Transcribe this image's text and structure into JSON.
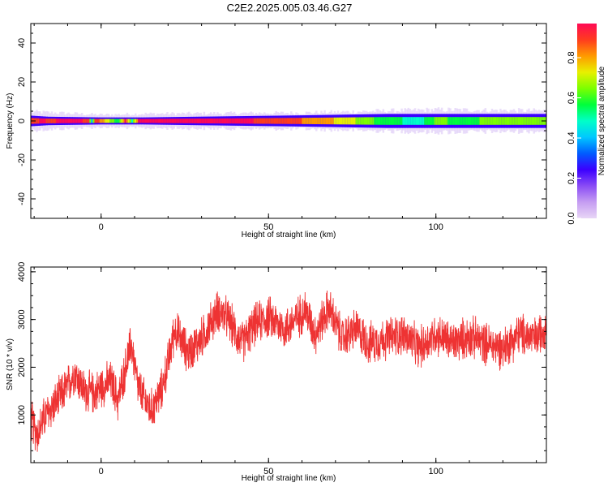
{
  "title": "C2E2.2025.005.03.46.G27",
  "chart_data": [
    {
      "type": "heatmap",
      "xlabel": "Height of straight line (km)",
      "ylabel": "Frequency (Hz)",
      "xlim": [
        -21,
        133
      ],
      "ylim": [
        -50,
        50
      ],
      "xticks": [
        0,
        50,
        100
      ],
      "yticks": [
        -40,
        -20,
        0,
        20,
        40
      ],
      "band_center_hz": 0,
      "band_core_halfwidth_hz": [
        {
          "x": -21,
          "w": 1.5
        },
        {
          "x": -16,
          "w": 1.2
        },
        {
          "x": 0,
          "w": 1.0
        },
        {
          "x": 12,
          "w": 1.0
        },
        {
          "x": 60,
          "w": 1.6
        },
        {
          "x": 85,
          "w": 2.0
        },
        {
          "x": 133,
          "w": 2.0
        }
      ],
      "band_halo_halfwidth_hz": [
        {
          "x": -21,
          "w": 4.5
        },
        {
          "x": 0,
          "w": 3.0
        },
        {
          "x": 12,
          "w": 3.5
        },
        {
          "x": 60,
          "w": 4.0
        },
        {
          "x": 100,
          "w": 5.5
        },
        {
          "x": 133,
          "w": 5.0
        }
      ],
      "colorbar": {
        "label": "Normalized spectral amplitude",
        "ticks": [
          0.0,
          0.2,
          0.4,
          0.6,
          0.8
        ],
        "range": [
          0,
          0.97
        ],
        "colors": [
          "#e8d6f6",
          "#c59df2",
          "#8a4cf5",
          "#3b00ff",
          "#005cff",
          "#00c8ff",
          "#00ffc8",
          "#00ff3c",
          "#7cff00",
          "#e8f000",
          "#ff9a00",
          "#ff3c1e",
          "#ff0a55"
        ]
      },
      "amplitude_profile": [
        {
          "x": -21,
          "a": 0.86
        },
        {
          "x": -18,
          "a": 0.95
        },
        {
          "x": -15,
          "a": 0.9
        },
        {
          "x": -12,
          "a": 0.96
        },
        {
          "x": -4,
          "a": 0.92
        },
        {
          "x": -3,
          "a": 0.42
        },
        {
          "x": -2,
          "a": 0.9
        },
        {
          "x": 5,
          "a": 0.55
        },
        {
          "x": 7,
          "a": 0.93
        },
        {
          "x": 9,
          "a": 0.5
        },
        {
          "x": 11,
          "a": 0.95
        },
        {
          "x": 40,
          "a": 0.96
        },
        {
          "x": 65,
          "a": 0.82
        },
        {
          "x": 75,
          "a": 0.7
        },
        {
          "x": 85,
          "a": 0.55
        },
        {
          "x": 95,
          "a": 0.5
        },
        {
          "x": 100,
          "a": 0.62
        },
        {
          "x": 110,
          "a": 0.58
        },
        {
          "x": 120,
          "a": 0.68
        },
        {
          "x": 133,
          "a": 0.65
        }
      ]
    },
    {
      "type": "line",
      "xlabel": "Height of straight line (km)",
      "ylabel": "SNR (10 * v/v)",
      "xlim": [
        -21,
        133
      ],
      "ylim": [
        0,
        4100
      ],
      "xticks": [
        0,
        50,
        100
      ],
      "yticks": [
        1000,
        2000,
        3000,
        4000
      ],
      "line_color": "#ee3333",
      "noise_amplitude": 400,
      "baseline": [
        {
          "x": -21,
          "y": 900
        },
        {
          "x": -19,
          "y": 600
        },
        {
          "x": -17,
          "y": 950
        },
        {
          "x": -13,
          "y": 1300
        },
        {
          "x": -10,
          "y": 1600
        },
        {
          "x": -8,
          "y": 1900
        },
        {
          "x": -5,
          "y": 1500
        },
        {
          "x": -2,
          "y": 1450
        },
        {
          "x": 0,
          "y": 1600
        },
        {
          "x": 3,
          "y": 1700
        },
        {
          "x": 5,
          "y": 1300
        },
        {
          "x": 7,
          "y": 1900
        },
        {
          "x": 9,
          "y": 2500
        },
        {
          "x": 11,
          "y": 1600
        },
        {
          "x": 13,
          "y": 1300
        },
        {
          "x": 15,
          "y": 1100
        },
        {
          "x": 18,
          "y": 1500
        },
        {
          "x": 20,
          "y": 2100
        },
        {
          "x": 22,
          "y": 2800
        },
        {
          "x": 26,
          "y": 2300
        },
        {
          "x": 30,
          "y": 2600
        },
        {
          "x": 35,
          "y": 3200
        },
        {
          "x": 38,
          "y": 3000
        },
        {
          "x": 42,
          "y": 2500
        },
        {
          "x": 46,
          "y": 2900
        },
        {
          "x": 50,
          "y": 3050
        },
        {
          "x": 55,
          "y": 2800
        },
        {
          "x": 58,
          "y": 3000
        },
        {
          "x": 61,
          "y": 3200
        },
        {
          "x": 64,
          "y": 2700
        },
        {
          "x": 68,
          "y": 3250
        },
        {
          "x": 72,
          "y": 2600
        },
        {
          "x": 76,
          "y": 2800
        },
        {
          "x": 80,
          "y": 2500
        },
        {
          "x": 85,
          "y": 2600
        },
        {
          "x": 90,
          "y": 2700
        },
        {
          "x": 95,
          "y": 2400
        },
        {
          "x": 100,
          "y": 2700
        },
        {
          "x": 105,
          "y": 2500
        },
        {
          "x": 110,
          "y": 2650
        },
        {
          "x": 115,
          "y": 2500
        },
        {
          "x": 120,
          "y": 2400
        },
        {
          "x": 125,
          "y": 2700
        },
        {
          "x": 130,
          "y": 2600
        },
        {
          "x": 133,
          "y": 2900
        }
      ]
    }
  ]
}
